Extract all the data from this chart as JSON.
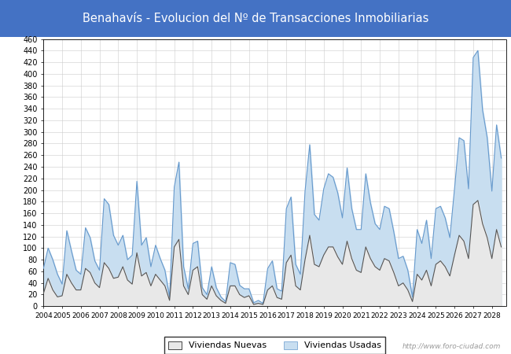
{
  "title": "Benahavís - Evolucion del Nº de Transacciones Inmobiliarias",
  "title_bg_color": "#4472C4",
  "title_text_color": "white",
  "ylim": [
    0,
    460
  ],
  "ytick_step": 20,
  "watermark": "http://www.foro-ciudad.com",
  "legend_labels": [
    "Viviendas Nuevas",
    "Viviendas Usadas"
  ],
  "line_nuevas_color": "#555555",
  "line_usadas_color": "#6699CC",
  "fill_usadas_color": "#C8DEF0",
  "fill_nuevas_color": "#E8E8E8",
  "x_start_year": 2004,
  "quarters_per_year": 4,
  "viviendas_usadas": [
    65,
    100,
    80,
    55,
    38,
    130,
    95,
    62,
    55,
    135,
    118,
    78,
    62,
    185,
    175,
    122,
    105,
    122,
    80,
    88,
    215,
    105,
    118,
    68,
    105,
    82,
    62,
    16,
    205,
    248,
    68,
    30,
    108,
    112,
    32,
    20,
    68,
    32,
    16,
    8,
    75,
    72,
    36,
    30,
    30,
    6,
    10,
    5,
    65,
    78,
    30,
    26,
    168,
    188,
    72,
    55,
    198,
    278,
    158,
    148,
    202,
    228,
    222,
    195,
    152,
    238,
    168,
    132,
    132,
    228,
    178,
    142,
    132,
    172,
    168,
    128,
    82,
    86,
    62,
    16,
    132,
    108,
    148,
    82,
    168,
    172,
    152,
    118,
    202,
    290,
    285,
    202,
    428,
    440,
    338,
    290,
    198,
    312,
    255
  ],
  "viviendas_nuevas": [
    22,
    48,
    28,
    16,
    18,
    55,
    40,
    28,
    28,
    65,
    58,
    40,
    32,
    75,
    65,
    48,
    50,
    68,
    45,
    38,
    92,
    52,
    58,
    35,
    55,
    45,
    35,
    10,
    102,
    115,
    35,
    20,
    62,
    68,
    20,
    12,
    35,
    18,
    10,
    5,
    35,
    35,
    20,
    15,
    18,
    3,
    5,
    3,
    28,
    35,
    15,
    12,
    75,
    88,
    35,
    28,
    80,
    122,
    72,
    68,
    88,
    102,
    102,
    85,
    72,
    112,
    82,
    62,
    58,
    102,
    82,
    68,
    62,
    82,
    78,
    58,
    35,
    40,
    28,
    8,
    55,
    45,
    62,
    35,
    72,
    78,
    68,
    52,
    88,
    122,
    112,
    82,
    175,
    182,
    142,
    118,
    82,
    132,
    102
  ]
}
